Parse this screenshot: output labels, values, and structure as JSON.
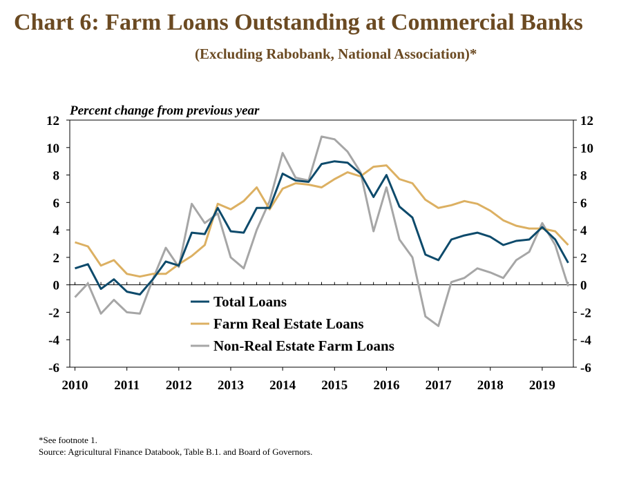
{
  "header": {
    "title": "Chart 6: Farm Loans Outstanding at Commercial Banks",
    "subtitle": "(Excluding Rabobank, National Association)*"
  },
  "footer": {
    "footnote": "*See footnote 1.",
    "source": "Source: Agricultural Finance Databook, Table B.1. and Board of Governors."
  },
  "chart_data": {
    "type": "line",
    "ylabel": "Percent change from previous year",
    "ylim": [
      -6,
      12
    ],
    "yticks": [
      "-6",
      "-4",
      "-2",
      "0",
      "2",
      "4",
      "6",
      "8",
      "10",
      "12"
    ],
    "year_labels": [
      "2010",
      "2011",
      "2012",
      "2013",
      "2014",
      "2015",
      "2016",
      "2017",
      "2018",
      "2019"
    ],
    "x": [
      2010.0,
      2010.25,
      2010.5,
      2010.75,
      2011.0,
      2011.25,
      2011.5,
      2011.75,
      2012.0,
      2012.25,
      2012.5,
      2012.75,
      2013.0,
      2013.25,
      2013.5,
      2013.75,
      2014.0,
      2014.25,
      2014.5,
      2014.75,
      2015.0,
      2015.25,
      2015.5,
      2015.75,
      2016.0,
      2016.25,
      2016.5,
      2016.75,
      2017.0,
      2017.25,
      2017.5,
      2017.75,
      2018.0,
      2018.25,
      2018.5,
      2018.75,
      2019.0,
      2019.25,
      2019.5
    ],
    "grid": false,
    "legend_position": "center-left",
    "series": [
      {
        "name": "Total Loans",
        "color": "#0d4a6b",
        "values": [
          1.2,
          1.5,
          -0.3,
          0.4,
          -0.5,
          -0.7,
          0.4,
          1.7,
          1.4,
          3.8,
          3.7,
          5.6,
          3.9,
          3.8,
          5.6,
          5.6,
          8.1,
          7.6,
          7.5,
          8.8,
          9.0,
          8.9,
          8.1,
          6.4,
          8.0,
          5.7,
          4.9,
          2.2,
          1.8,
          3.3,
          3.6,
          3.8,
          3.5,
          2.9,
          3.2,
          3.3,
          4.2,
          3.3,
          1.6
        ]
      },
      {
        "name": "Farm Real Estate Loans",
        "color": "#dcb062",
        "values": [
          3.1,
          2.8,
          1.4,
          1.8,
          0.8,
          0.6,
          0.8,
          0.8,
          1.5,
          2.1,
          2.9,
          5.9,
          5.5,
          6.1,
          7.1,
          5.5,
          7.0,
          7.4,
          7.3,
          7.1,
          7.7,
          8.2,
          7.9,
          8.6,
          8.7,
          7.7,
          7.4,
          6.2,
          5.6,
          5.8,
          6.1,
          5.9,
          5.4,
          4.7,
          4.3,
          4.1,
          4.1,
          3.9,
          2.9
        ]
      },
      {
        "name": "Non-Real Estate Farm Loans",
        "color": "#a6a6a6",
        "values": [
          -0.9,
          0.1,
          -2.1,
          -1.1,
          -2.0,
          -2.1,
          0.4,
          2.7,
          1.3,
          5.9,
          4.5,
          5.2,
          2.0,
          1.2,
          4.0,
          6.1,
          9.6,
          7.8,
          7.6,
          10.8,
          10.6,
          9.7,
          8.2,
          3.9,
          7.1,
          3.3,
          2.0,
          -2.3,
          -3.0,
          0.2,
          0.5,
          1.2,
          0.9,
          0.5,
          1.8,
          2.4,
          4.5,
          2.9,
          -0.1
        ]
      }
    ]
  }
}
